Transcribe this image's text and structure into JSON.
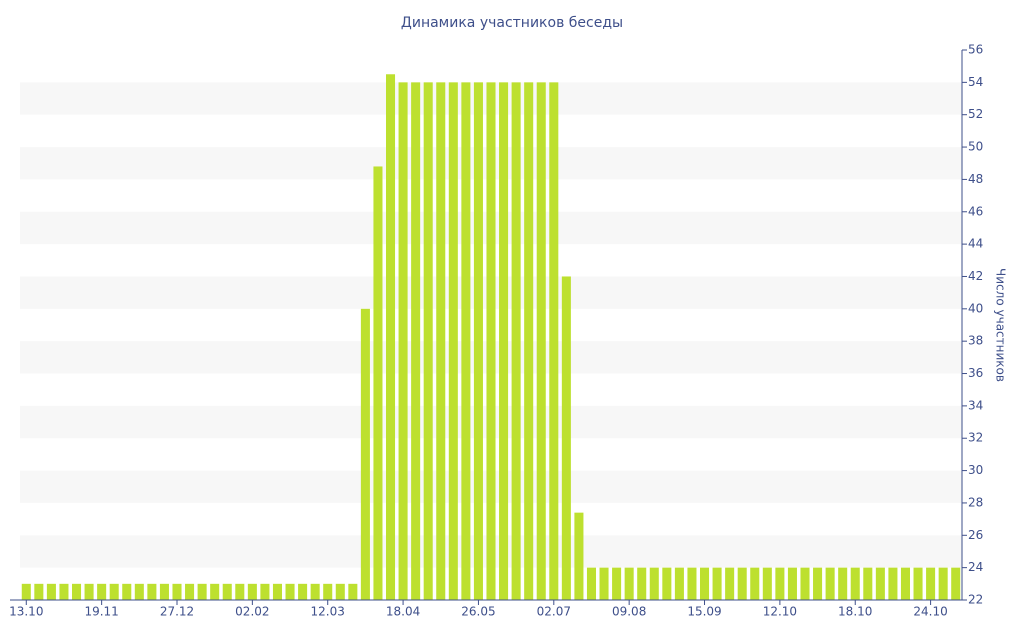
{
  "chart_data": {
    "type": "bar",
    "title": "Динамика участников беседы",
    "y_label": "Число участников",
    "categories": [
      "13.10",
      null,
      null,
      null,
      null,
      null,
      "19.11",
      null,
      null,
      null,
      null,
      null,
      "27.12",
      null,
      null,
      null,
      null,
      null,
      "02.02",
      null,
      null,
      null,
      null,
      null,
      "12.03",
      null,
      null,
      null,
      null,
      null,
      "18.04",
      null,
      null,
      null,
      null,
      null,
      "26.05",
      null,
      null,
      null,
      null,
      null,
      "02.07",
      null,
      null,
      null,
      null,
      null,
      "09.08",
      null,
      null,
      null,
      null,
      null,
      "15.09",
      null,
      null,
      null,
      null,
      null,
      "12.10",
      null,
      null,
      null,
      null,
      null,
      "18.10",
      null,
      null,
      null,
      null,
      null,
      "24.10",
      null,
      null
    ],
    "values": [
      23,
      23,
      23,
      23,
      23,
      23,
      23,
      23,
      23,
      23,
      23,
      23,
      23,
      23,
      23,
      23,
      23,
      23,
      23,
      23,
      23,
      23,
      23,
      23,
      23,
      23,
      23,
      40,
      48.8,
      54.5,
      54,
      54,
      54,
      54,
      54,
      54,
      54,
      54,
      54,
      54,
      54,
      54,
      54,
      42,
      27.4,
      24,
      24,
      24,
      24,
      24,
      24,
      24,
      24,
      24,
      24,
      24,
      24,
      24,
      24,
      24,
      24,
      24,
      24,
      24,
      24,
      24,
      24,
      24,
      24,
      24,
      24,
      24,
      24,
      24,
      24
    ],
    "color": "#bde02f",
    "ylim": [
      22,
      56
    ],
    "yticks": [
      22,
      24,
      26,
      28,
      30,
      32,
      34,
      36,
      38,
      40,
      42,
      44,
      46,
      48,
      50,
      52,
      54,
      56
    ],
    "y_axis_side": "right",
    "grid": "bands"
  }
}
